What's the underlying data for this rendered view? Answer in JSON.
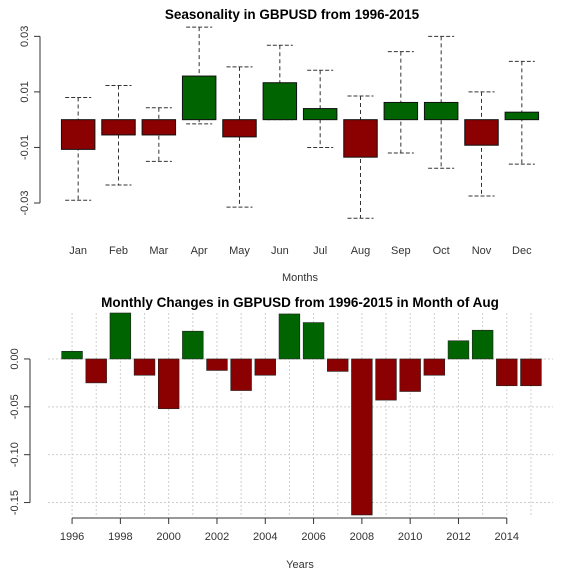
{
  "chart_data": [
    {
      "type": "bar",
      "title": "Seasonality in GBPUSD from 1996-2015",
      "xlabel": "Months",
      "ylabel": "",
      "ylim": [
        -0.039,
        0.033
      ],
      "yticks": [
        -0.03,
        -0.01,
        0.01,
        0.03
      ],
      "ytick_labels": [
        "-0.03",
        "-0.01",
        "0.01",
        "0.03"
      ],
      "categories": [
        "Jan",
        "Feb",
        "Mar",
        "Apr",
        "May",
        "Jun",
        "Jul",
        "Aug",
        "Sep",
        "Oct",
        "Nov",
        "Dec"
      ],
      "values": [
        -0.0107,
        -0.0055,
        -0.0055,
        0.0157,
        -0.0062,
        0.0133,
        0.004,
        -0.0135,
        0.0062,
        0.0062,
        -0.0092,
        0.0027
      ],
      "whisker_low": [
        -0.029,
        -0.0235,
        -0.015,
        -0.0015,
        -0.0315,
        0.0,
        -0.01,
        -0.0355,
        -0.012,
        -0.0175,
        -0.0275,
        -0.016
      ],
      "whisker_high": [
        0.008,
        0.0123,
        0.0043,
        0.0333,
        0.019,
        0.0268,
        0.0178,
        0.0085,
        0.0245,
        0.03,
        0.01,
        0.021
      ],
      "colors": {
        "positive": "#006400",
        "negative": "#8b0000"
      },
      "grid": false
    },
    {
      "type": "bar",
      "title": "Monthly Changes in GBPUSD from 1996-2015 in Month of Aug",
      "xlabel": "Years",
      "ylabel": "",
      "ylim": [
        -0.163,
        0.048
      ],
      "yticks": [
        -0.15,
        -0.1,
        -0.05,
        0.0
      ],
      "ytick_labels": [
        "-0.15",
        "-0.10",
        "-0.05",
        "0.00"
      ],
      "x": [
        1996,
        1997,
        1998,
        1999,
        2000,
        2001,
        2002,
        2003,
        2004,
        2005,
        2006,
        2007,
        2008,
        2009,
        2010,
        2011,
        2012,
        2013,
        2014,
        2015
      ],
      "xtick_labels": [
        "1996",
        "1998",
        "2000",
        "2002",
        "2004",
        "2006",
        "2008",
        "2010",
        "2012",
        "2014"
      ],
      "xtick_values": [
        1996,
        1998,
        2000,
        2002,
        2004,
        2006,
        2008,
        2010,
        2012,
        2014
      ],
      "values": [
        0.008,
        -0.025,
        0.048,
        -0.017,
        -0.052,
        0.029,
        -0.012,
        -0.033,
        -0.017,
        0.047,
        0.038,
        -0.013,
        -0.163,
        -0.043,
        -0.034,
        -0.017,
        0.019,
        0.03,
        -0.028,
        -0.028
      ],
      "colors": {
        "positive": "#006400",
        "negative": "#8b0000"
      },
      "grid": true
    }
  ]
}
